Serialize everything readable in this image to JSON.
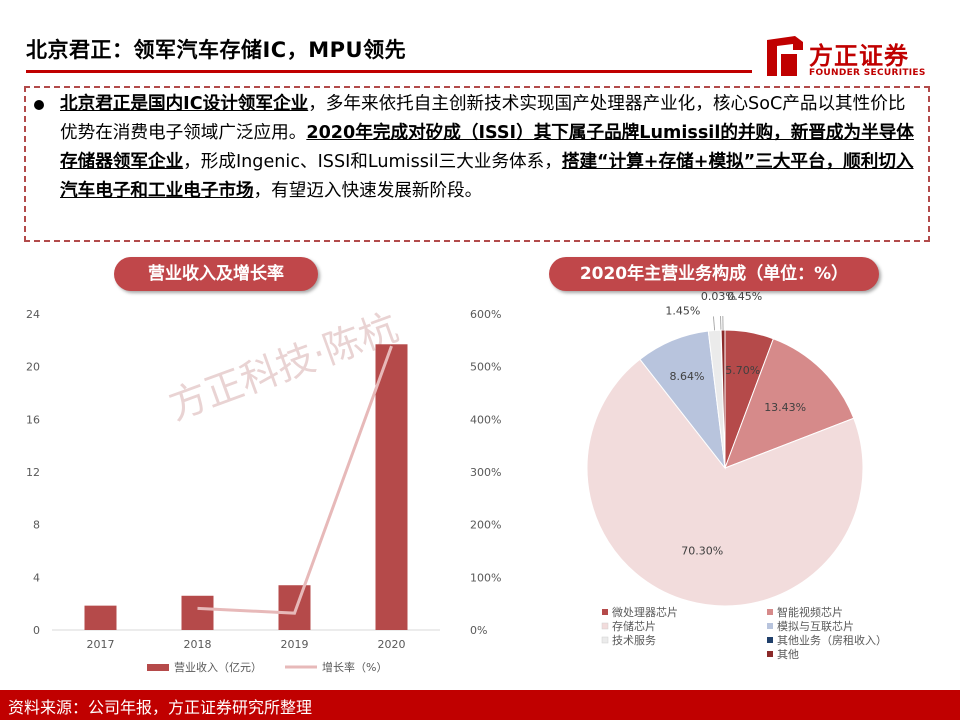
{
  "header": {
    "title": "北京君正：领军汽车存储IC，MPU领先"
  },
  "brand": {
    "name_cn": "方正证券",
    "name_en": "FOUNDER SECURITIES",
    "color": "#c00000"
  },
  "summary": {
    "parts": [
      {
        "text": "北京君正是国内IC设计领军企业",
        "style": "bu"
      },
      {
        "text": "，多年来依托自主创新技术实现国产处理器产业化，核心SoC产品以其性价比优势在消费电子领域广泛应用。",
        "style": "n"
      },
      {
        "text": "2020年完成对矽成（ISSI）其下属子品牌Lumissil的并购，新晋成为半导体存储器领军企业",
        "style": "bu"
      },
      {
        "text": "，形成Ingenic、ISSI和Lumissil三大业务体系，",
        "style": "n"
      },
      {
        "text": "搭建“计算+存储+模拟”三大平台，顺利切入汽车电子和工业电子市场",
        "style": "bu"
      },
      {
        "text": "，有望迈入快速发展新阶段。",
        "style": "n"
      }
    ]
  },
  "left_panel": {
    "pill": "营业收入及增长率",
    "watermark": "方正科技·陈杭"
  },
  "right_panel": {
    "pill": "2020年主营业务构成（单位：%）"
  },
  "chart_data": [
    {
      "type": "bar",
      "categories": [
        "2017",
        "2018",
        "2019",
        "2020"
      ],
      "series": [
        {
          "name": "营业收入（亿元）",
          "kind": "bar",
          "axis": "left",
          "values": [
            1.85,
            2.6,
            3.4,
            21.7
          ],
          "color": "#b54a4a"
        },
        {
          "name": "增长率（%）",
          "kind": "line",
          "axis": "right",
          "values": [
            null,
            41,
            32,
            539
          ],
          "color": "#e7b9b9"
        }
      ],
      "y_left": {
        "min": 0,
        "max": 24,
        "ticks": [
          "0",
          "4",
          "8",
          "12",
          "16",
          "20",
          "24"
        ]
      },
      "y_right": {
        "min": 0,
        "max": 600,
        "ticks": [
          "0%",
          "100%",
          "200%",
          "300%",
          "400%",
          "500%",
          "600%"
        ]
      },
      "grid": false,
      "legend": "bottom"
    },
    {
      "type": "pie",
      "slices": [
        {
          "label": "微处理器芯片",
          "value": 5.7,
          "text": "5.70%",
          "color": "#b54a4a"
        },
        {
          "label": "智能视频芯片",
          "value": 13.43,
          "text": "13.43%",
          "color": "#d68a8a"
        },
        {
          "label": "存储芯片",
          "value": 70.3,
          "text": "70.30%",
          "color": "#f2dcdc"
        },
        {
          "label": "模拟与互联芯片",
          "value": 8.64,
          "text": "8.64%",
          "color": "#b8c4dd"
        },
        {
          "label": "技术服务",
          "value": 1.45,
          "text": "1.45%",
          "color": "#ebebeb"
        },
        {
          "label": "其他业务（房租收入）",
          "value": 0.03,
          "text": "0.03%",
          "color": "#1f3f6a"
        },
        {
          "label": "其他",
          "value": 0.45,
          "text": "0.45%",
          "color": "#8b2a2a"
        }
      ],
      "legend": "bottom"
    }
  ],
  "footer": {
    "source": "资料来源：公司年报，方正证券研究所整理"
  }
}
